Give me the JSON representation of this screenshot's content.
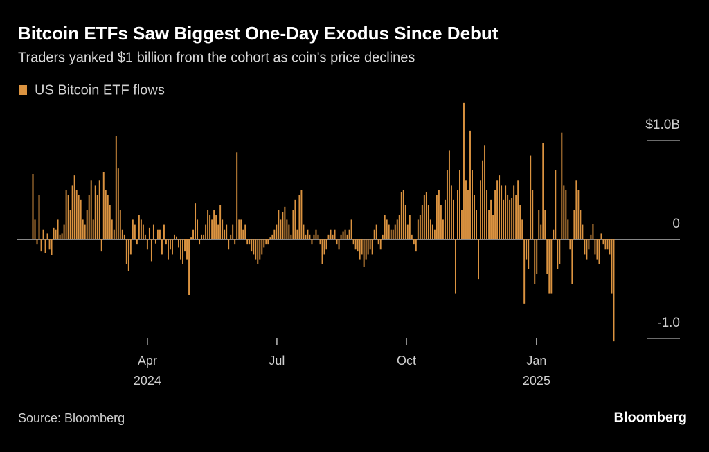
{
  "chart_data": {
    "type": "bar",
    "title": "Bitcoin ETFs Saw Biggest One-Day Exodus Since Debut",
    "subtitle": "Traders yanked $1 billion from the cohort as coin's price declines",
    "source": "Source: Bloomberg",
    "brand": "Bloomberg",
    "series": [
      {
        "name": "US Bitcoin ETF flows",
        "color": "#db9340",
        "values": [
          0.66,
          0.2,
          -0.05,
          0.45,
          -0.12,
          0.1,
          -0.14,
          0.06,
          -0.1,
          -0.16,
          0.12,
          0.1,
          0.2,
          0.05,
          0.06,
          0.15,
          0.5,
          0.45,
          0.3,
          0.55,
          0.65,
          0.5,
          0.45,
          0.4,
          0.2,
          0.15,
          0.3,
          0.45,
          0.6,
          0.2,
          0.55,
          0.45,
          0.6,
          -0.12,
          0.68,
          0.5,
          0.45,
          0.35,
          0.2,
          0.1,
          1.05,
          0.72,
          0.3,
          0.1,
          0.05,
          -0.25,
          -0.32,
          -0.15,
          0.2,
          0.15,
          -0.05,
          0.25,
          0.2,
          0.15,
          0.05,
          -0.1,
          0.12,
          -0.22,
          0.15,
          -0.04,
          0.1,
          0.1,
          -0.15,
          0.15,
          -0.05,
          -0.2,
          -0.1,
          -0.15,
          0.05,
          0.03,
          -0.08,
          -0.2,
          -0.25,
          -0.12,
          -0.2,
          -0.56,
          0.02,
          0.1,
          0.37,
          0.2,
          -0.05,
          0.05,
          0.05,
          0.15,
          0.3,
          0.25,
          0.2,
          0.3,
          0.25,
          0.15,
          0.35,
          0.2,
          0.1,
          0.15,
          -0.1,
          0.05,
          0.15,
          -0.05,
          0.88,
          0.2,
          0.2,
          0.1,
          0.15,
          -0.05,
          -0.05,
          -0.12,
          -0.15,
          -0.2,
          -0.25,
          -0.2,
          -0.15,
          -0.08,
          -0.05,
          -0.05,
          0.02,
          0.05,
          0.1,
          0.15,
          0.3,
          0.2,
          0.28,
          0.33,
          0.2,
          0.15,
          0.05,
          0.3,
          0.4,
          0.1,
          0.45,
          0.5,
          0.15,
          0.05,
          0.1,
          0.05,
          -0.05,
          0.05,
          0.1,
          0.05,
          -0.05,
          -0.25,
          -0.15,
          -0.1,
          0.05,
          0.1,
          0.05,
          0.1,
          -0.05,
          -0.1,
          0.05,
          0.08,
          0.1,
          0.05,
          0.1,
          0.2,
          -0.05,
          -0.1,
          -0.12,
          -0.2,
          -0.15,
          -0.28,
          -0.2,
          -0.15,
          -0.1,
          -0.15,
          0.1,
          0.15,
          -0.05,
          -0.1,
          0.05,
          0.25,
          0.2,
          0.15,
          0.1,
          0.1,
          0.15,
          0.2,
          0.25,
          0.48,
          0.5,
          0.35,
          0.15,
          0.25,
          0.05,
          -0.05,
          -0.12,
          0.2,
          0.25,
          0.35,
          0.45,
          0.48,
          0.35,
          0.2,
          0.15,
          0.1,
          0.45,
          0.5,
          0.35,
          0.2,
          0.4,
          0.7,
          0.9,
          0.55,
          0.4,
          -0.55,
          0.5,
          0.7,
          0.3,
          1.38,
          0.6,
          0.5,
          1.1,
          0.7,
          0.45,
          0.3,
          -0.4,
          0.6,
          0.8,
          0.95,
          0.5,
          0.3,
          0.4,
          0.25,
          0.5,
          0.6,
          0.65,
          0.55,
          0.4,
          0.55,
          0.45,
          0.4,
          0.42,
          0.55,
          0.45,
          0.6,
          0.35,
          0.2,
          -0.65,
          -0.2,
          -0.3,
          0.85,
          0.5,
          -0.45,
          -0.35,
          0.3,
          0.15,
          0.98,
          0.3,
          -0.35,
          -0.55,
          -0.55,
          0.1,
          0.7,
          -0.3,
          -0.25,
          1.08,
          0.55,
          0.5,
          0.2,
          -0.1,
          -0.45,
          0.3,
          0.6,
          0.5,
          0.3,
          0.15,
          -0.15,
          -0.2,
          -0.1,
          0.05,
          0.16,
          -0.15,
          -0.2,
          -0.25,
          0.06,
          -0.05,
          -0.1,
          -0.1,
          -0.15,
          -0.55,
          -1.03
        ]
      }
    ],
    "xlim": [
      0,
      280
    ],
    "xticks": [
      {
        "value": 55.5,
        "label": "Apr"
      },
      {
        "value": 117.7,
        "label": "Jul"
      },
      {
        "value": 179.9,
        "label": "Oct"
      },
      {
        "value": 242.4,
        "label": "Jan"
      }
    ],
    "xtick_years": [
      {
        "value": 55.5,
        "label": "2024"
      },
      {
        "value": 242.4,
        "label": "2025"
      }
    ],
    "ylim": [
      -1.05,
      1.4
    ],
    "yticks": [
      {
        "value": 1,
        "label": "$1.0B"
      },
      0,
      {
        "value": -1,
        "label": "-1.0"
      }
    ]
  }
}
